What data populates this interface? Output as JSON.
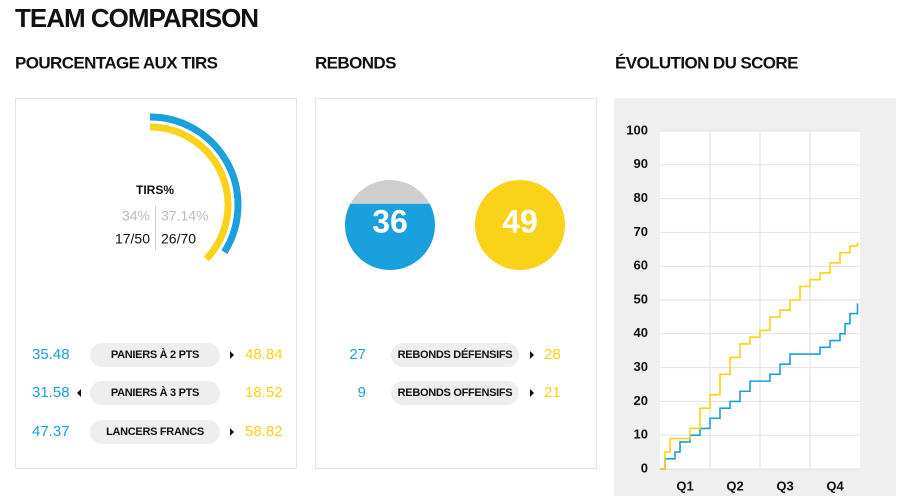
{
  "header": {
    "title": "TEAM COMPARISON"
  },
  "colors": {
    "team1": "#1aa0dc",
    "team2": "#f9d21a"
  },
  "shooting": {
    "title": "POURCENTAGE AUX TIRS",
    "label": "TIRS%",
    "team1": {
      "pct": {
        "value": 34,
        "label": "34%"
      },
      "made": "17/50"
    },
    "team2": {
      "pct": {
        "value": 37.14,
        "label": "37.14%"
      },
      "made": "26/70"
    },
    "rows": [
      {
        "label": "PANIERS À 2 PTS",
        "team1": 35.48,
        "team2": 48.84
      },
      {
        "label": "PANIERS À 3 PTS",
        "team1": 31.58,
        "team2": 18.52
      },
      {
        "label": "LANCERS FRANCS",
        "team1": 47.37,
        "team2": 58.82
      }
    ]
  },
  "rebounds": {
    "title": "REBONDS",
    "team1": 36,
    "team2": 49,
    "rows": [
      {
        "label": "REBONDS DÉFENSIFS",
        "team1": 27,
        "team2": 28
      },
      {
        "label": "REBONDS OFFENSIFS",
        "team1": 9,
        "team2": 21
      }
    ]
  },
  "score": {
    "title": "ÉVOLUTION DU SCORE",
    "ylim": [
      0,
      100
    ],
    "yticks": [
      0,
      10,
      20,
      30,
      40,
      50,
      60,
      70,
      80,
      90,
      100
    ],
    "xlim": [
      0,
      40
    ],
    "quarters": [
      "Q1",
      "Q2",
      "Q3",
      "Q4"
    ],
    "grid": true,
    "series": [
      {
        "color": "#1aa0dc",
        "x": [
          0,
          1,
          3,
          4,
          6,
          8,
          10,
          12,
          14,
          16,
          18,
          22,
          24,
          26,
          32,
          34,
          36,
          37,
          38,
          39.5
        ],
        "values": [
          0,
          3,
          5,
          8,
          10,
          12,
          15,
          18,
          20,
          23,
          26,
          28,
          31,
          34,
          36,
          38,
          40,
          43,
          46,
          49
        ]
      },
      {
        "color": "#f9d21a",
        "x": [
          0,
          1,
          2,
          6,
          8,
          10,
          12,
          14,
          16,
          18,
          20,
          22,
          24,
          26,
          28,
          30,
          32,
          34,
          36,
          38,
          39.5
        ],
        "values": [
          0,
          5,
          9,
          12,
          18,
          22,
          28,
          33,
          37,
          39,
          41,
          45,
          47,
          50,
          54,
          56,
          58,
          61,
          64,
          66,
          67
        ]
      }
    ]
  }
}
